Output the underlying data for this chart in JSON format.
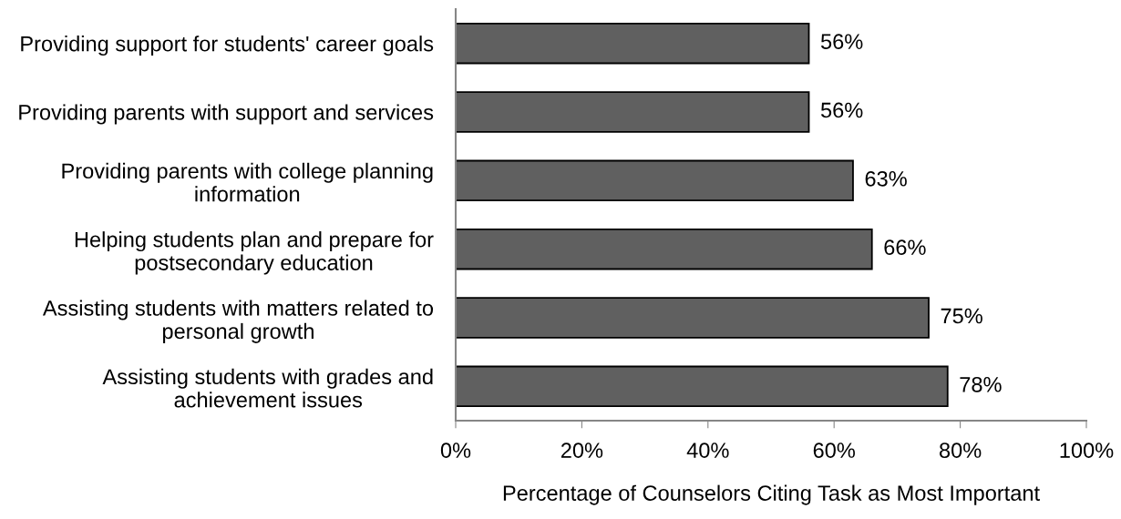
{
  "chart_data": {
    "type": "bar",
    "orientation": "horizontal",
    "categories": [
      "Providing support for students' career goals",
      "Providing parents with support and services",
      "Providing parents with college planning\ninformation",
      "Helping students plan and prepare for\npostsecondary education",
      "Assisting students with matters related to\npersonal growth",
      "Assisting students with grades and\nachievement issues"
    ],
    "values": [
      56,
      56,
      63,
      66,
      75,
      78
    ],
    "color": "#606060",
    "value_labels": [
      "56%",
      "56%",
      "63%",
      "66%",
      "75%",
      "78%"
    ],
    "xlabel": "Percentage of Counselors Citing Task as Most Important",
    "xlim": [
      0,
      100
    ],
    "xticks": [
      {
        "value": 0,
        "label": "0%"
      },
      {
        "value": 20,
        "label": "20%"
      },
      {
        "value": 40,
        "label": "40%"
      },
      {
        "value": 60,
        "label": "60%"
      },
      {
        "value": 80,
        "label": "80%"
      },
      {
        "value": 100,
        "label": "100%"
      }
    ]
  }
}
